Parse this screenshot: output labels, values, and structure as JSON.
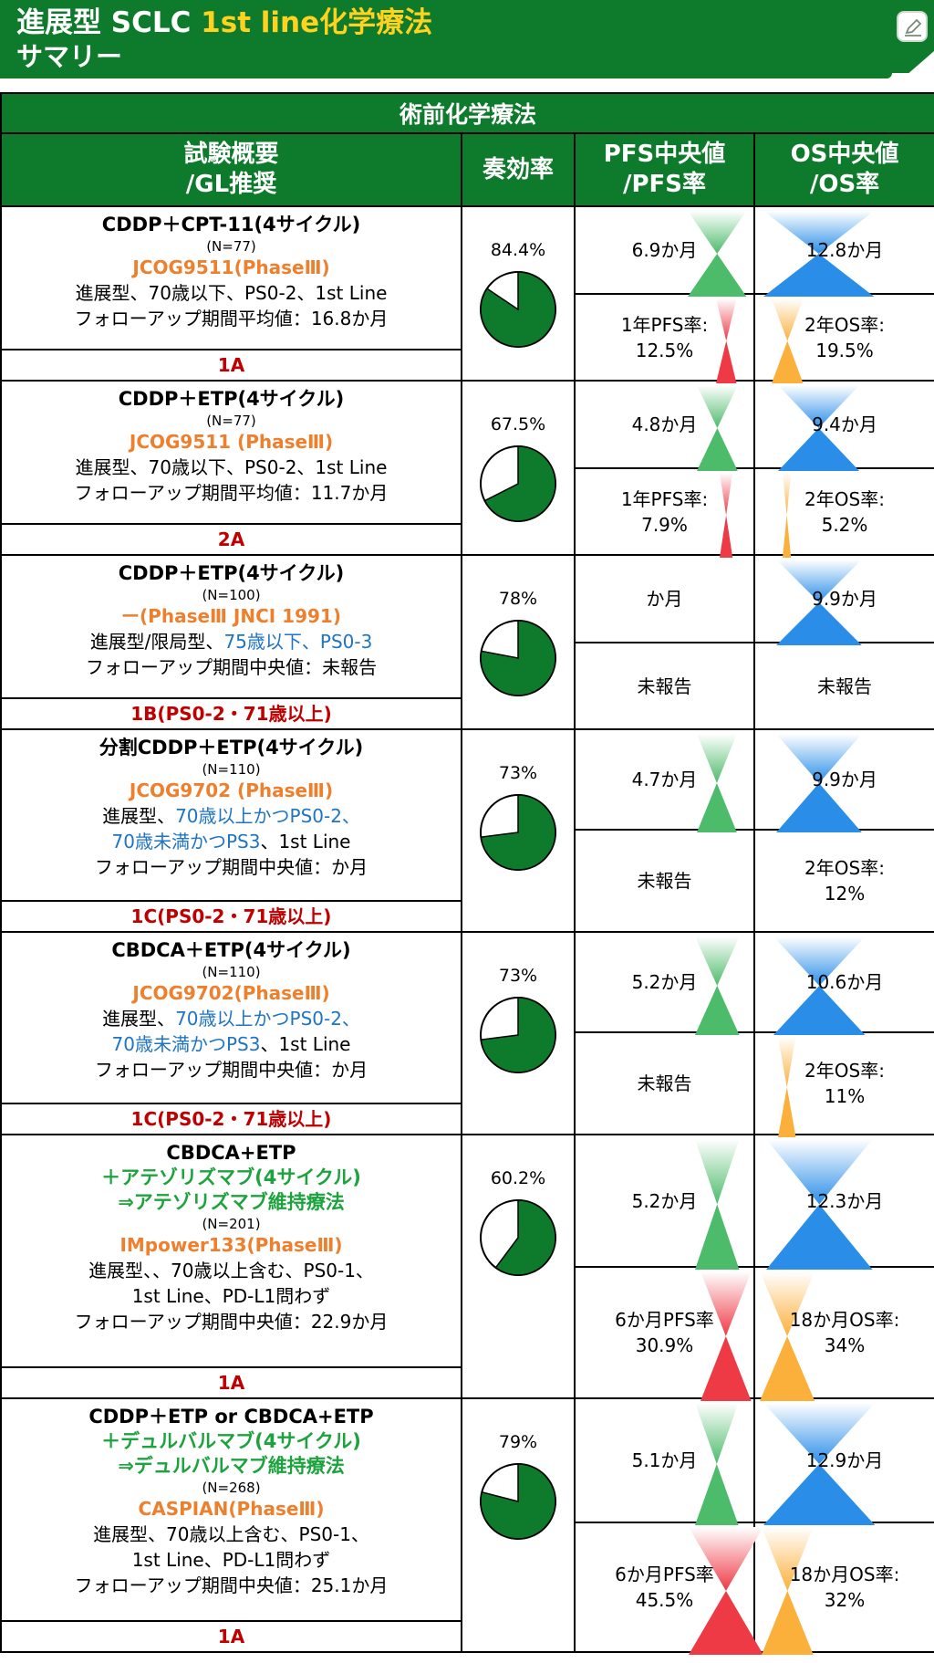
{
  "header": {
    "title_part1": "進展型 SCLC ",
    "title_highlight": "1st line化学療法",
    "title_line2": "サマリー",
    "icon": "pen-edit-icon",
    "bg_color": "#0e7a2c",
    "highlight_color": "#ffd21f"
  },
  "table": {
    "section_title": "術前化学療法",
    "columns": {
      "study": [
        "試験概要",
        "/GL推奨"
      ],
      "response": [
        "奏効率"
      ],
      "pfs": [
        "PFS中央値",
        "/PFS率"
      ],
      "os": [
        "OS中央値",
        "/OS率"
      ]
    },
    "rows": [
      {
        "title": [
          {
            "text": "CDDP＋CPT-11(4サイクル)",
            "green": false
          }
        ],
        "n": "(N=77)",
        "trial": "JCOG9511(PhaseⅢ)",
        "desc": [
          [
            {
              "t": "進展型、70歳以下、PS0-2、1st Line"
            }
          ],
          [
            {
              "t": "フォローアップ期間平均値：16.8か月"
            }
          ]
        ],
        "rec": "1A",
        "response": {
          "label": "84.4%",
          "value": 84.4
        },
        "pfs_median": {
          "label": "6.9か月",
          "value": 6.9
        },
        "os_median": {
          "label": "12.8か月",
          "value": 12.8
        },
        "pfs_rate": {
          "label": [
            "1年PFS率:",
            "12.5%"
          ],
          "value": 12.5
        },
        "os_rate": {
          "label": [
            "2年OS率:",
            "19.5%"
          ],
          "value": 19.5
        }
      },
      {
        "title": [
          {
            "text": "CDDP＋ETP(4サイクル)",
            "green": false
          }
        ],
        "n": "(N=77)",
        "trial": "JCOG9511 (PhaseⅢ)",
        "desc": [
          [
            {
              "t": "進展型、70歳以下、PS0-2、1st Line"
            }
          ],
          [
            {
              "t": "フォローアップ期間平均値：11.7か月"
            }
          ]
        ],
        "rec": "2A",
        "response": {
          "label": "67.5%",
          "value": 67.5
        },
        "pfs_median": {
          "label": "4.8か月",
          "value": 4.8
        },
        "os_median": {
          "label": "9.4か月",
          "value": 9.4
        },
        "pfs_rate": {
          "label": [
            "1年PFS率:",
            "7.9%"
          ],
          "value": 7.9
        },
        "os_rate": {
          "label": [
            "2年OS率:",
            "5.2%"
          ],
          "value": 5.2
        }
      },
      {
        "title": [
          {
            "text": "CDDP＋ETP(4サイクル)",
            "green": false
          }
        ],
        "n": "(N=100)",
        "trial": "ー(PhaseⅢ JNCI 1991)",
        "desc": [
          [
            {
              "t": "進展型/限局型、"
            },
            {
              "t": "75歳以下、PS0-3",
              "blue": true
            }
          ],
          [
            {
              "t": "フォローアップ期間中央値：未報告"
            }
          ]
        ],
        "rec": "1B(PS0-2・71歳以上)",
        "response": {
          "label": "78%",
          "value": 78
        },
        "pfs_median": {
          "label": "か月"
        },
        "os_median": {
          "label": "9.9か月",
          "value": 9.9
        },
        "pfs_rate": {
          "label": [
            "未報告"
          ]
        },
        "os_rate": {
          "label": [
            "未報告"
          ]
        }
      },
      {
        "title": [
          {
            "text": "分割CDDP＋ETP(4サイクル)",
            "green": false
          }
        ],
        "n": "(N=110)",
        "trial": "JCOG9702 (PhaseⅢ)",
        "desc": [
          [
            {
              "t": "進展型、"
            },
            {
              "t": "70歳以上かつPS0-2、",
              "blue": true
            }
          ],
          [
            {
              "t": "70歳未満かつPS3",
              "blue": true
            },
            {
              "t": "、1st Line"
            }
          ],
          [
            {
              "t": "フォローアップ期間中央値：か月"
            }
          ]
        ],
        "rec": "1C(PS0-2・71歳以上)",
        "response": {
          "label": "73%",
          "value": 73
        },
        "pfs_median": {
          "label": "4.7か月",
          "value": 4.7
        },
        "os_median": {
          "label": "9.9か月",
          "value": 9.9
        },
        "pfs_rate": {
          "label": [
            "未報告"
          ]
        },
        "os_rate": {
          "label": [
            "2年OS率:",
            "12%"
          ]
        }
      },
      {
        "title": [
          {
            "text": "CBDCA＋ETP(4サイクル)",
            "green": false
          }
        ],
        "n": "(N=110)",
        "trial": "JCOG9702(PhaseⅢ)",
        "desc": [
          [
            {
              "t": "進展型、"
            },
            {
              "t": "70歳以上かつPS0-2、",
              "blue": true
            }
          ],
          [
            {
              "t": "70歳未満かつPS3",
              "blue": true
            },
            {
              "t": "、1st Line"
            }
          ],
          [
            {
              "t": "フォローアップ期間中央値：か月"
            }
          ]
        ],
        "rec": "1C(PS0-2・71歳以上)",
        "response": {
          "label": "73%",
          "value": 73
        },
        "pfs_median": {
          "label": "5.2か月",
          "value": 5.2
        },
        "os_median": {
          "label": "10.6か月",
          "value": 10.6
        },
        "pfs_rate": {
          "label": [
            "未報告"
          ]
        },
        "os_rate": {
          "label": [
            "2年OS率:",
            "11%"
          ],
          "value": 11
        }
      },
      {
        "title": [
          {
            "text": "CBDCA+ETP",
            "green": false
          },
          {
            "text": "＋アテゾリズマブ(4サイクル)",
            "green": true
          },
          {
            "text": "⇒アテゾリズマブ維持療法",
            "green": true
          }
        ],
        "n": "(N=201)",
        "trial": "IMpower133(PhaseⅢ)",
        "desc": [
          [
            {
              "t": "進展型、、70歳以上含む、PS0-1、"
            }
          ],
          [
            {
              "t": "1st Line、PD-L1問わず"
            }
          ],
          [
            {
              "t": "フォローアップ期間中央値：22.9か月"
            }
          ]
        ],
        "rec": "1A",
        "response": {
          "label": "60.2%",
          "value": 60.2
        },
        "pfs_median": {
          "label": "5.2か月",
          "value": 5.2
        },
        "os_median": {
          "label": "12.3か月",
          "value": 12.3
        },
        "pfs_rate": {
          "label": [
            "6か月PFS率",
            "30.9%"
          ],
          "value": 30.9
        },
        "os_rate": {
          "label": [
            "18か月OS率:",
            "34%"
          ],
          "value": 34
        }
      },
      {
        "title": [
          {
            "text": "CDDP＋ETP or CBDCA+ETP",
            "green": false
          },
          {
            "text": "＋デュルバルマブ(4サイクル)",
            "green": true
          },
          {
            "text": "⇒デュルバルマブ維持療法",
            "green": true
          }
        ],
        "n": "(N=268)",
        "trial": "CASPIAN(PhaseⅢ)",
        "desc": [
          [
            {
              "t": "進展型、70歳以上含む、PS0-1、"
            }
          ],
          [
            {
              "t": "1st Line、PD-L1問わず"
            }
          ],
          [
            {
              "t": "フォローアップ期間中央値：25.1か月"
            }
          ]
        ],
        "rec": "1A",
        "response": {
          "label": "79%",
          "value": 79
        },
        "pfs_median": {
          "label": "5.1か月",
          "value": 5.1
        },
        "os_median": {
          "label": "12.9か月",
          "value": 12.9
        },
        "pfs_rate": {
          "label": [
            "6か月PFS率",
            "45.5%"
          ],
          "value": 45.5
        },
        "os_rate": {
          "label": [
            "18か月OS率:",
            "32%"
          ],
          "value": 32
        }
      }
    ]
  },
  "colors": {
    "green": "#0e7a2c",
    "orange": "#ee7f2d",
    "blue": "#1f74c4",
    "red": "#c00000",
    "title_green": "#1ca33d"
  }
}
